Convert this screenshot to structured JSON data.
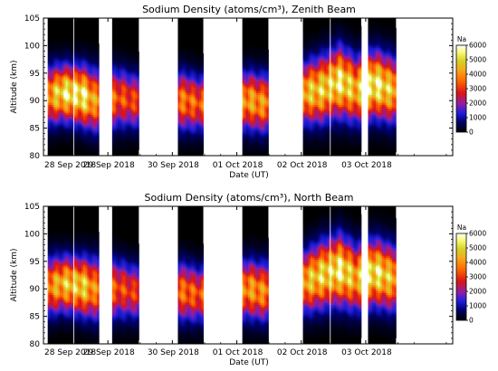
{
  "chart_data": [
    {
      "type": "heatmap",
      "title": "Sodium Density (atoms/cm³), Zenith Beam",
      "xlabel": "Date (UT)",
      "ylabel": "Altitude (km)",
      "ylim": [
        80,
        105
      ],
      "y_ticks": [
        80,
        85,
        90,
        95,
        100,
        105
      ],
      "x_tick_labels": [
        "28 Sep 2018",
        "29 Sep 2018",
        "30 Sep 2018",
        "01 Oct 2018",
        "02 Oct 2018",
        "03 Oct 2018"
      ],
      "xlim_days": [
        0,
        6.35
      ],
      "colorbar": {
        "label": "Na",
        "ticks": [
          0,
          1000,
          2000,
          3000,
          4000,
          5000,
          6000
        ],
        "range": [
          0,
          6000
        ]
      },
      "observation_windows": [
        [
          0.06,
          0.47
        ],
        [
          0.47,
          0.86
        ],
        [
          1.06,
          1.48
        ],
        [
          2.08,
          2.48
        ],
        [
          3.08,
          3.49
        ],
        [
          4.02,
          4.45
        ],
        [
          4.45,
          4.93
        ],
        [
          5.03,
          5.47
        ]
      ],
      "layer_profile": [
        {
          "t": 0.1,
          "peak_alt": 91.0,
          "peak_density": 4200,
          "width_km": 3.4
        },
        {
          "t": 0.3,
          "peak_alt": 91.5,
          "peak_density": 5200,
          "width_km": 3.2
        },
        {
          "t": 0.6,
          "peak_alt": 91.0,
          "peak_density": 5600,
          "width_km": 3.4
        },
        {
          "t": 0.8,
          "peak_alt": 90.0,
          "peak_density": 4000,
          "width_km": 3.6
        },
        {
          "t": 1.2,
          "peak_alt": 90.5,
          "peak_density": 3300,
          "width_km": 3.4
        },
        {
          "t": 1.4,
          "peak_alt": 90.0,
          "peak_density": 3100,
          "width_km": 3.2
        },
        {
          "t": 2.2,
          "peak_alt": 90.0,
          "peak_density": 3700,
          "width_km": 3.4
        },
        {
          "t": 2.4,
          "peak_alt": 89.5,
          "peak_density": 3400,
          "width_km": 3.2
        },
        {
          "t": 3.2,
          "peak_alt": 90.0,
          "peak_density": 4200,
          "width_km": 3.4
        },
        {
          "t": 3.4,
          "peak_alt": 89.5,
          "peak_density": 4000,
          "width_km": 3.4
        },
        {
          "t": 4.1,
          "peak_alt": 91.5,
          "peak_density": 4600,
          "width_km": 3.6
        },
        {
          "t": 4.3,
          "peak_alt": 92.0,
          "peak_density": 4800,
          "width_km": 3.8
        },
        {
          "t": 4.6,
          "peak_alt": 93.5,
          "peak_density": 5400,
          "width_km": 4.0
        },
        {
          "t": 4.85,
          "peak_alt": 92.0,
          "peak_density": 4500,
          "width_km": 3.8
        },
        {
          "t": 5.15,
          "peak_alt": 93.0,
          "peak_density": 5600,
          "width_km": 3.8
        },
        {
          "t": 5.4,
          "peak_alt": 92.0,
          "peak_density": 4600,
          "width_km": 3.8
        }
      ]
    },
    {
      "type": "heatmap",
      "title": "Sodium Density (atoms/cm³), North Beam",
      "xlabel": "Date (UT)",
      "ylabel": "Altitude (km)",
      "ylim": [
        80,
        105
      ],
      "y_ticks": [
        80,
        85,
        90,
        95,
        100,
        105
      ],
      "x_tick_labels": [
        "28 Sep 2018",
        "29 Sep 2018",
        "30 Sep 2018",
        "01 Oct 2018",
        "02 Oct 2018",
        "03 Oct 2018"
      ],
      "xlim_days": [
        0,
        6.35
      ],
      "colorbar": {
        "label": "Na",
        "ticks": [
          0,
          1000,
          2000,
          3000,
          4000,
          5000,
          6000
        ],
        "range": [
          0,
          6000
        ]
      },
      "observation_windows": [
        [
          0.06,
          0.47
        ],
        [
          0.47,
          0.86
        ],
        [
          1.06,
          1.48
        ],
        [
          2.08,
          2.48
        ],
        [
          3.08,
          3.49
        ],
        [
          4.02,
          4.45
        ],
        [
          4.45,
          4.93
        ],
        [
          5.03,
          5.47
        ]
      ],
      "layer_profile": [
        {
          "t": 0.1,
          "peak_alt": 90.5,
          "peak_density": 4000,
          "width_km": 3.4
        },
        {
          "t": 0.3,
          "peak_alt": 91.0,
          "peak_density": 4600,
          "width_km": 3.2
        },
        {
          "t": 0.6,
          "peak_alt": 90.5,
          "peak_density": 5000,
          "width_km": 3.4
        },
        {
          "t": 0.8,
          "peak_alt": 90.0,
          "peak_density": 3800,
          "width_km": 3.6
        },
        {
          "t": 1.2,
          "peak_alt": 90.0,
          "peak_density": 3200,
          "width_km": 3.4
        },
        {
          "t": 1.4,
          "peak_alt": 89.5,
          "peak_density": 3000,
          "width_km": 3.2
        },
        {
          "t": 2.2,
          "peak_alt": 89.5,
          "peak_density": 3600,
          "width_km": 3.4
        },
        {
          "t": 2.4,
          "peak_alt": 89.0,
          "peak_density": 3300,
          "width_km": 3.2
        },
        {
          "t": 3.2,
          "peak_alt": 90.0,
          "peak_density": 4100,
          "width_km": 3.4
        },
        {
          "t": 3.4,
          "peak_alt": 89.5,
          "peak_density": 3900,
          "width_km": 3.4
        },
        {
          "t": 4.1,
          "peak_alt": 91.5,
          "peak_density": 4500,
          "width_km": 3.6
        },
        {
          "t": 4.3,
          "peak_alt": 92.5,
          "peak_density": 4900,
          "width_km": 3.8
        },
        {
          "t": 4.6,
          "peak_alt": 93.5,
          "peak_density": 5500,
          "width_km": 4.0
        },
        {
          "t": 4.85,
          "peak_alt": 92.0,
          "peak_density": 4400,
          "width_km": 3.8
        },
        {
          "t": 5.15,
          "peak_alt": 93.0,
          "peak_density": 5400,
          "width_km": 3.8
        },
        {
          "t": 5.4,
          "peak_alt": 92.0,
          "peak_density": 4500,
          "width_km": 3.8
        }
      ]
    }
  ]
}
